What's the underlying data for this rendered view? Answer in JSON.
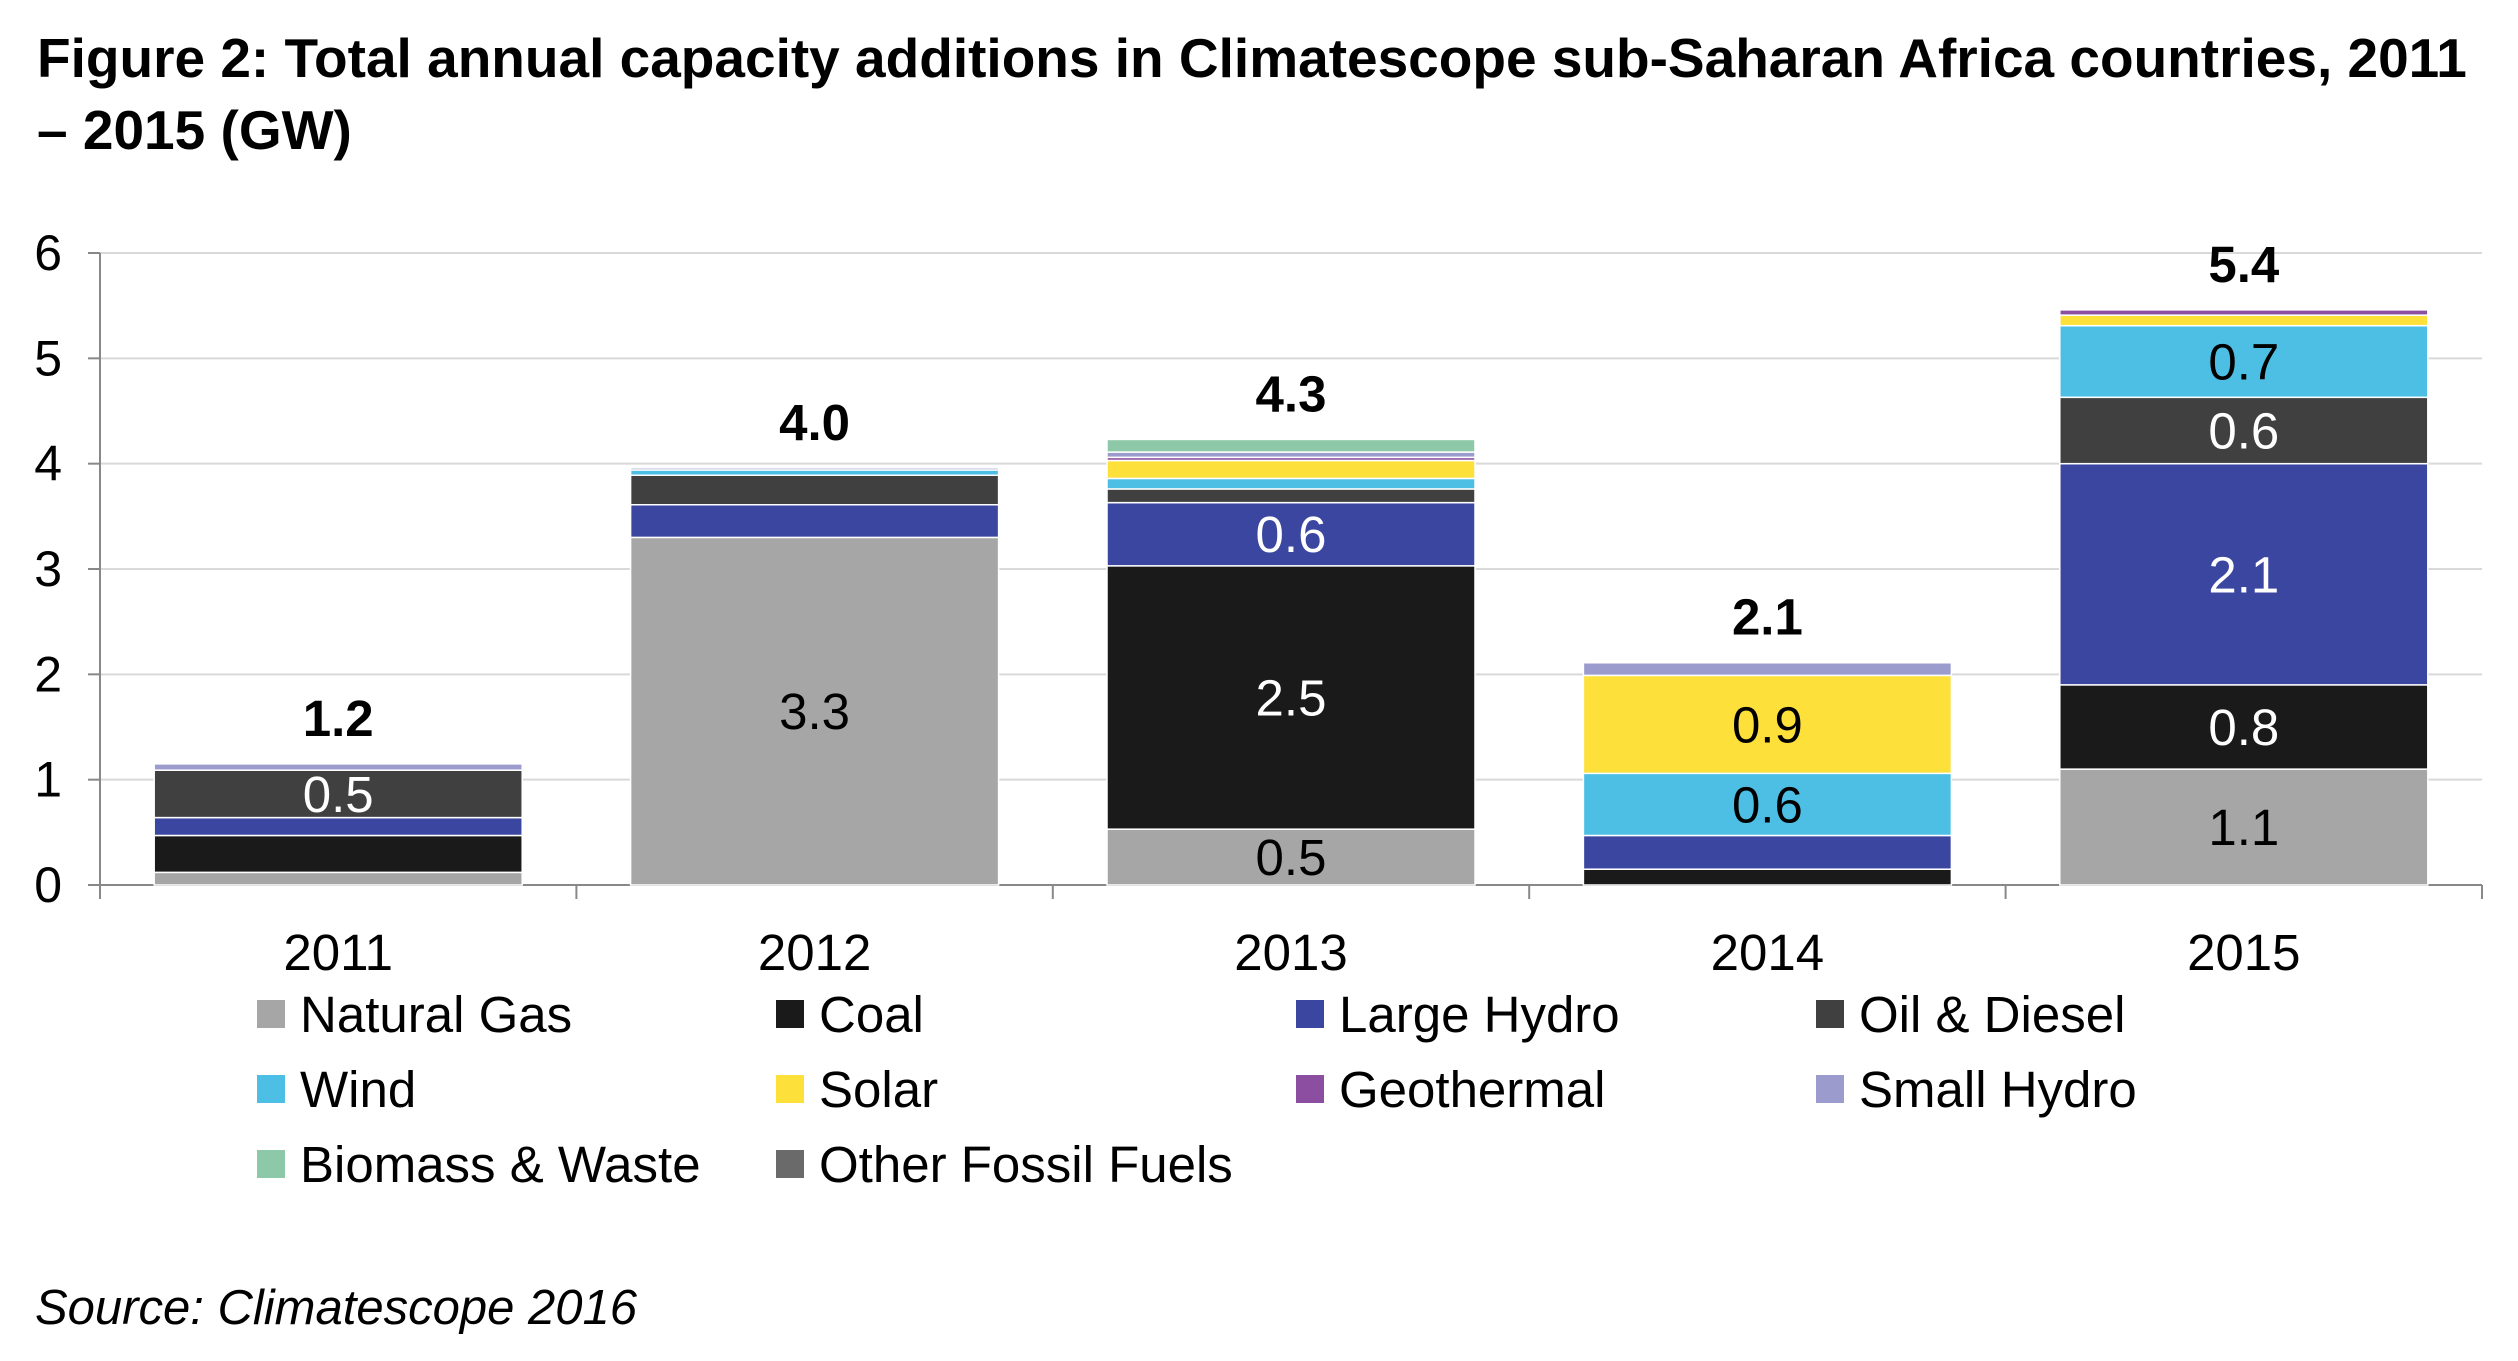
{
  "chart_data": {
    "type": "bar",
    "stacked": true,
    "title": "Figure 2: Total annual capacity additions in Climatescope sub-Saharan Africa countries, 2011 – 2015 (GW)",
    "source": "Source: Climatescope 2016",
    "categories": [
      "2011",
      "2012",
      "2013",
      "2014",
      "2015"
    ],
    "ylim": [
      0,
      6
    ],
    "yticks": [
      "0",
      "1",
      "2",
      "3",
      "4",
      "5",
      "6"
    ],
    "grid": true,
    "legend_position": "bottom",
    "totals": [
      "1.2",
      "4.0",
      "4.3",
      "2.1",
      "5.4"
    ],
    "series": [
      {
        "name": "Natural Gas",
        "color": "#a6a6a6",
        "values": [
          0.12,
          3.3,
          0.53,
          0.0,
          1.1
        ],
        "labels": [
          "",
          "3.3",
          "0.5",
          "",
          "1.1"
        ],
        "label_color": "#000000"
      },
      {
        "name": "Coal",
        "color": "#1a1a1a",
        "values": [
          0.35,
          0.0,
          2.5,
          0.15,
          0.8
        ],
        "labels": [
          "",
          "",
          "2.5",
          "",
          "0.8"
        ],
        "label_color": "#ffffff"
      },
      {
        "name": "Large Hydro",
        "color": "#3b46a0",
        "values": [
          0.17,
          0.31,
          0.6,
          0.32,
          2.1
        ],
        "labels": [
          "",
          "",
          "0.6",
          "",
          "2.1"
        ],
        "label_color": "#ffffff"
      },
      {
        "name": "Oil & Diesel",
        "color": "#404040",
        "values": [
          0.45,
          0.28,
          0.13,
          0.0,
          0.63
        ],
        "labels": [
          "0.5",
          "",
          "",
          "",
          "0.6"
        ],
        "label_color": "#ffffff"
      },
      {
        "name": "Wind",
        "color": "#4dbfe4",
        "values": [
          0.0,
          0.05,
          0.1,
          0.59,
          0.68
        ],
        "labels": [
          "",
          "",
          "",
          "0.6",
          "0.7"
        ],
        "label_color": "#000000"
      },
      {
        "name": "Solar",
        "color": "#fde03a",
        "values": [
          0.0,
          0.0,
          0.17,
          0.93,
          0.1
        ],
        "labels": [
          "",
          "",
          "",
          "0.9",
          ""
        ],
        "label_color": "#000000"
      },
      {
        "name": "Geothermal",
        "color": "#8b4ea0",
        "values": [
          0.0,
          0.0,
          0.03,
          0.0,
          0.05
        ],
        "labels": [
          "",
          "",
          "",
          "",
          ""
        ],
        "label_color": "#ffffff"
      },
      {
        "name": "Small Hydro",
        "color": "#9b9bce",
        "values": [
          0.06,
          0.02,
          0.05,
          0.12,
          0.0
        ],
        "labels": [
          "",
          "",
          "",
          "",
          ""
        ],
        "label_color": "#000000"
      },
      {
        "name": "Biomass & Waste",
        "color": "#8dc8a8",
        "values": [
          0.0,
          0.0,
          0.12,
          0.0,
          0.0
        ],
        "labels": [
          "",
          "",
          "",
          "",
          ""
        ],
        "label_color": "#000000"
      },
      {
        "name": "Other Fossil Fuels",
        "color": "#6a6a6a",
        "values": [
          0.0,
          0.0,
          0.0,
          0.0,
          0.0
        ],
        "labels": [
          "",
          "",
          "",
          "",
          ""
        ],
        "label_color": "#ffffff"
      }
    ]
  }
}
